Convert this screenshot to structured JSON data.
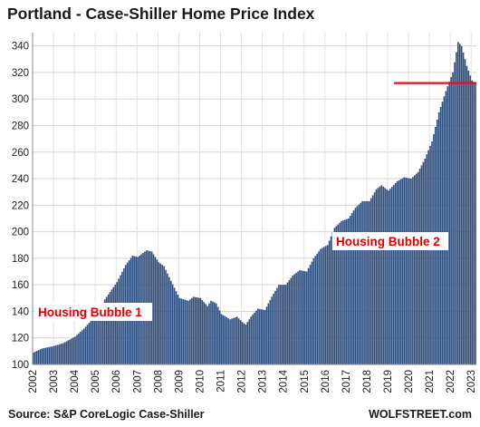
{
  "chart_data": {
    "type": "bar",
    "title": "Portland - Case-Shiller Home Price Index",
    "xlabel": "",
    "ylabel": "",
    "ylim": [
      100,
      350
    ],
    "yticks": [
      100,
      120,
      140,
      160,
      180,
      200,
      220,
      240,
      260,
      280,
      300,
      320,
      340
    ],
    "xticks": [
      "2002",
      "2003",
      "2004",
      "2005",
      "2006",
      "2007",
      "2008",
      "2009",
      "2010",
      "2011",
      "2012",
      "2013",
      "2014",
      "2015",
      "2016",
      "2017",
      "2018",
      "2019",
      "2020",
      "2021",
      "2022",
      "2023"
    ],
    "grid": true,
    "colors": {
      "bars": "#2f4f7f",
      "reference_line": "#e0121b",
      "annotation": "#e00000"
    },
    "reference_line": {
      "value": 312,
      "from": "2020-01"
    },
    "annotations": [
      {
        "text": "Housing Bubble 1"
      },
      {
        "text": "Housing Bubble 2"
      }
    ],
    "series_name": "",
    "start": "2002-01",
    "monthly_keyframes": [
      [
        "2002-01",
        109
      ],
      [
        "2002-06",
        112
      ],
      [
        "2003-01",
        114
      ],
      [
        "2003-06",
        116
      ],
      [
        "2004-01",
        121
      ],
      [
        "2004-06",
        127
      ],
      [
        "2005-01",
        137
      ],
      [
        "2005-06",
        149
      ],
      [
        "2006-01",
        162
      ],
      [
        "2006-06",
        175
      ],
      [
        "2006-10",
        182
      ],
      [
        "2007-01",
        181
      ],
      [
        "2007-06",
        186
      ],
      [
        "2007-09",
        185
      ],
      [
        "2008-01",
        177
      ],
      [
        "2008-04",
        174
      ],
      [
        "2008-08",
        163
      ],
      [
        "2009-01",
        150
      ],
      [
        "2009-06",
        148
      ],
      [
        "2009-09",
        151
      ],
      [
        "2010-01",
        150
      ],
      [
        "2010-05",
        144
      ],
      [
        "2010-07",
        148
      ],
      [
        "2010-10",
        146
      ],
      [
        "2011-01",
        138
      ],
      [
        "2011-06",
        134
      ],
      [
        "2011-10",
        136
      ],
      [
        "2012-01",
        132
      ],
      [
        "2012-03",
        130
      ],
      [
        "2012-06",
        136
      ],
      [
        "2012-10",
        142
      ],
      [
        "2013-02",
        141
      ],
      [
        "2013-06",
        151
      ],
      [
        "2013-10",
        160
      ],
      [
        "2014-02",
        160
      ],
      [
        "2014-06",
        167
      ],
      [
        "2014-10",
        171
      ],
      [
        "2015-02",
        170
      ],
      [
        "2015-06",
        180
      ],
      [
        "2015-10",
        187
      ],
      [
        "2016-02",
        190
      ],
      [
        "2016-06",
        203
      ],
      [
        "2016-10",
        208
      ],
      [
        "2017-02",
        210
      ],
      [
        "2017-06",
        218
      ],
      [
        "2017-10",
        223
      ],
      [
        "2018-02",
        223
      ],
      [
        "2018-06",
        232
      ],
      [
        "2018-09",
        235
      ],
      [
        "2019-01",
        231
      ],
      [
        "2019-06",
        238
      ],
      [
        "2019-10",
        241
      ],
      [
        "2020-02",
        240
      ],
      [
        "2020-06",
        245
      ],
      [
        "2020-10",
        255
      ],
      [
        "2021-02",
        268
      ],
      [
        "2021-06",
        290
      ],
      [
        "2021-10",
        306
      ],
      [
        "2022-02",
        320
      ],
      [
        "2022-05",
        343
      ],
      [
        "2022-07",
        340
      ],
      [
        "2022-10",
        325
      ],
      [
        "2023-01",
        314
      ],
      [
        "2023-03",
        312
      ]
    ]
  },
  "title": "Portland - Case-Shiller Home Price Index",
  "footer": {
    "source": "Source: S&P CoreLogic Case-Shiller",
    "brand": "WOLFSTREET.com"
  }
}
